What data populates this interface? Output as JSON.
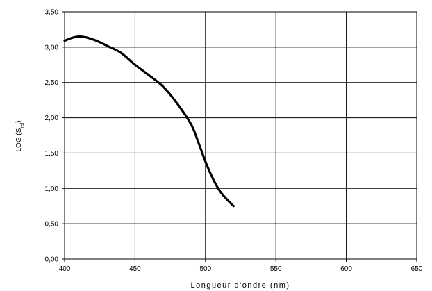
{
  "chart_data": {
    "type": "line",
    "title": "",
    "xlabel": "Longueur d'ondre (nm)",
    "ylabel": {
      "base": "LOG (S",
      "sub": "rel",
      "close": ")"
    },
    "xlim": [
      400,
      650
    ],
    "ylim": [
      0,
      3.5
    ],
    "x_ticks": [
      400,
      450,
      500,
      550,
      600,
      650
    ],
    "x_tick_labels": [
      "400",
      "450",
      "500",
      "550",
      "600",
      "650"
    ],
    "y_ticks": [
      0,
      0.5,
      1.0,
      1.5,
      2.0,
      2.5,
      3.0,
      3.5
    ],
    "y_tick_labels": [
      "0,00",
      "0,50",
      "1,00",
      "1,50",
      "2,00",
      "2,50",
      "3,00",
      "3,50"
    ],
    "grid": true,
    "legend": "none",
    "series": [
      {
        "color": "#000000",
        "x": [
          400,
          405,
          410,
          415,
          420,
          425,
          430,
          440,
          450,
          460,
          470,
          480,
          490,
          495,
          500,
          505,
          510,
          515,
          520
        ],
        "y": [
          3.09,
          3.13,
          3.15,
          3.14,
          3.11,
          3.07,
          3.02,
          2.92,
          2.75,
          2.6,
          2.44,
          2.2,
          1.9,
          1.65,
          1.38,
          1.15,
          0.97,
          0.85,
          0.75
        ]
      }
    ]
  }
}
